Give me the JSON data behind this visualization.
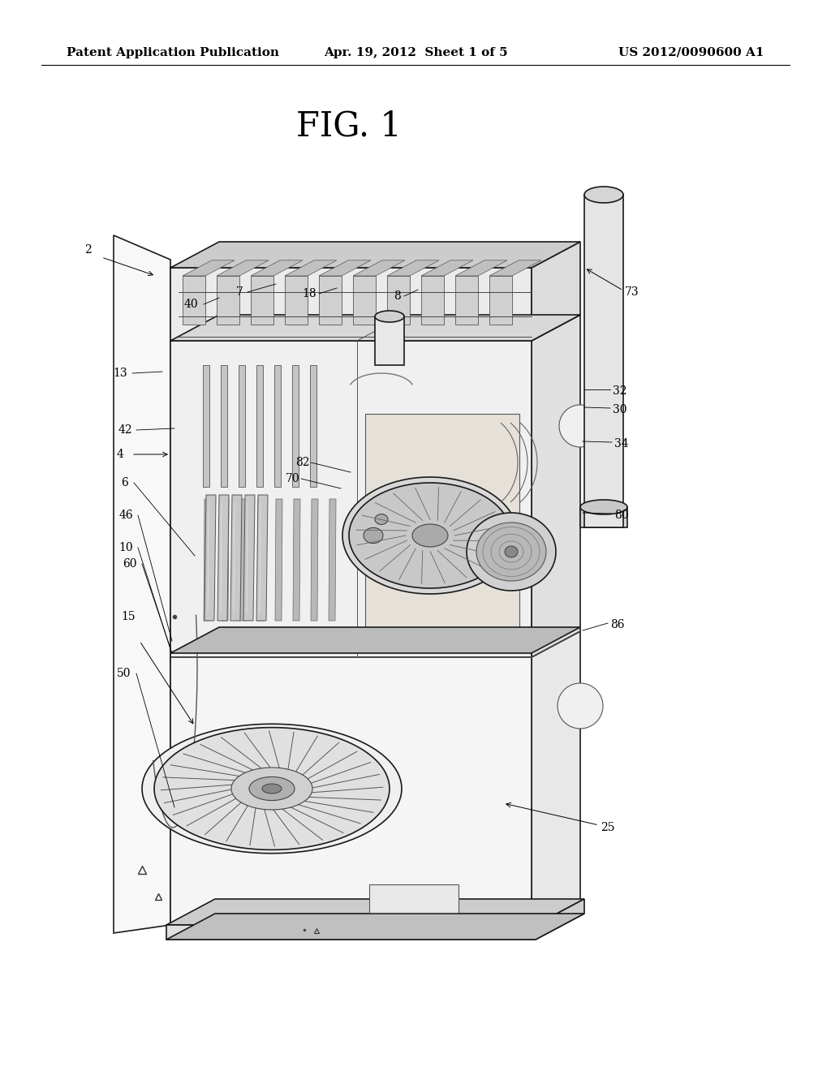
{
  "background_color": "#ffffff",
  "header_left": "Patent Application Publication",
  "header_center": "Apr. 19, 2012  Sheet 1 of 5",
  "header_right": "US 2012/0090600 A1",
  "header_fontsize": 11,
  "fig_title": "FIG. 1",
  "fig_title_fontsize": 30,
  "text_color": "#000000",
  "label_fontsize": 10
}
